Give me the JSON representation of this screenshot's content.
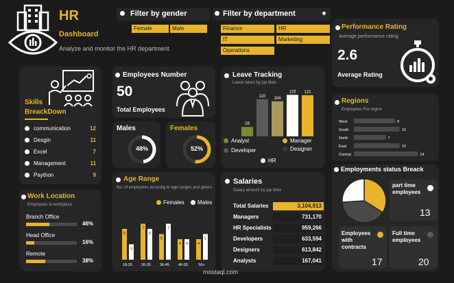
{
  "header": {
    "title": "HR",
    "subtitle": "Dashboard",
    "description": "Analyze and monitor the HR department"
  },
  "filters": {
    "gender_title": "Filter by gender",
    "gender_options": [
      "Female",
      "Male"
    ],
    "department_title": "Filter by department",
    "department_options": [
      "Finance",
      "HR",
      "IT",
      "Marketing",
      "Operations"
    ]
  },
  "performance": {
    "title": "Performance Rating",
    "subtitle": "Average performance rating",
    "value": "2.6",
    "label": "Average Rating"
  },
  "skills": {
    "title_line1": "Skills",
    "title_line2": "BreackDown",
    "items": [
      {
        "label": "communication",
        "value": "12"
      },
      {
        "label": "Desgin",
        "value": "11"
      },
      {
        "label": "Excel",
        "value": "7"
      },
      {
        "label": "Management",
        "value": "11"
      },
      {
        "label": "Paython",
        "value": "9"
      }
    ]
  },
  "employees": {
    "title": "Employees Number",
    "value": "50",
    "label": "Total Employees"
  },
  "males": {
    "title": "Males",
    "pct": "48%",
    "fraction": 0.48
  },
  "females": {
    "title": "Females",
    "pct": "52%",
    "fraction": 0.52
  },
  "leave": {
    "title": "Leave Tracking",
    "subtitle": "Leave taken by jop titels",
    "legend": [
      "Analyst",
      "Manager",
      "Developer",
      "Designer",
      "HR"
    ]
  },
  "regions": {
    "title": "Regions",
    "subtitle": "Employees Per region",
    "colors": {
      "bar": "#4a4a4a",
      "label": "#ffffff"
    }
  },
  "work_location": {
    "title": "Work Location",
    "subtitle": "Employees to workplace",
    "items": [
      {
        "label": "Branch Office",
        "pct": "46%",
        "fraction": 0.46
      },
      {
        "label": "Head Office",
        "pct": "16%",
        "fraction": 0.16
      },
      {
        "label": "Remote",
        "pct": "38%",
        "fraction": 0.38
      }
    ]
  },
  "age": {
    "title": "Age Range",
    "subtitle": "No. of employees accordig to age ranges and gelers",
    "legend": [
      "Females",
      "Males"
    ]
  },
  "salaries": {
    "title": "Salaries",
    "subtitle": "Salary amount by jop titels",
    "rows": [
      {
        "label": "Total Salaries",
        "value": "3,104,913"
      },
      {
        "label": "Managers",
        "value": "731,170"
      },
      {
        "label": "HR Specialists",
        "value": "959,266"
      },
      {
        "label": "Developers",
        "value": "633,594"
      },
      {
        "label": "Designers",
        "value": "613,842"
      },
      {
        "label": "Analysts",
        "value": "167,041"
      }
    ]
  },
  "status": {
    "title": "Employments status Breack",
    "part_time_label": "part time employees",
    "part_time_value": "13",
    "contracts_label": "Employees with contracts",
    "contracts_value": "17",
    "full_time_label": "Full time employees",
    "full_time_value": "20"
  },
  "watermark": "mostaql.com",
  "chart_data": [
    {
      "type": "bar",
      "title": "Leave Tracking",
      "categories": [
        "Analyst",
        "Developer",
        "Manager",
        "Designer",
        "HR"
      ],
      "values": [
        28,
        110,
        104,
        123,
        122
      ],
      "colors": [
        "#7a8a2e",
        "#5a5a5a",
        "#a89a5e",
        "#ffffff",
        "#e8b42c"
      ]
    },
    {
      "type": "bar",
      "title": "Regions",
      "categories": [
        "West",
        "South",
        "North",
        "East",
        "Central"
      ],
      "values": [
        9,
        10,
        7,
        10,
        14
      ],
      "xlim": [
        0,
        15
      ]
    },
    {
      "type": "bar",
      "title": "Age Range",
      "categories": [
        "18-25",
        "26-35",
        "36-45",
        "46-55",
        "56+"
      ],
      "series": [
        {
          "name": "Females",
          "values": [
            6,
            7,
            5,
            4,
            4
          ],
          "color": "#e8b42c"
        },
        {
          "name": "Males",
          "values": [
            3,
            6,
            7,
            4,
            5
          ],
          "color": "#ffffff"
        }
      ],
      "ylim": [
        0,
        8
      ]
    },
    {
      "type": "pie",
      "title": "Employments status Breack",
      "categories": [
        "part time employees",
        "Employees with contracts",
        "Full time employees"
      ],
      "values": [
        13,
        17,
        20
      ],
      "colors": [
        "#ffffff",
        "#e8b42c",
        "#4a4a4a"
      ]
    }
  ]
}
